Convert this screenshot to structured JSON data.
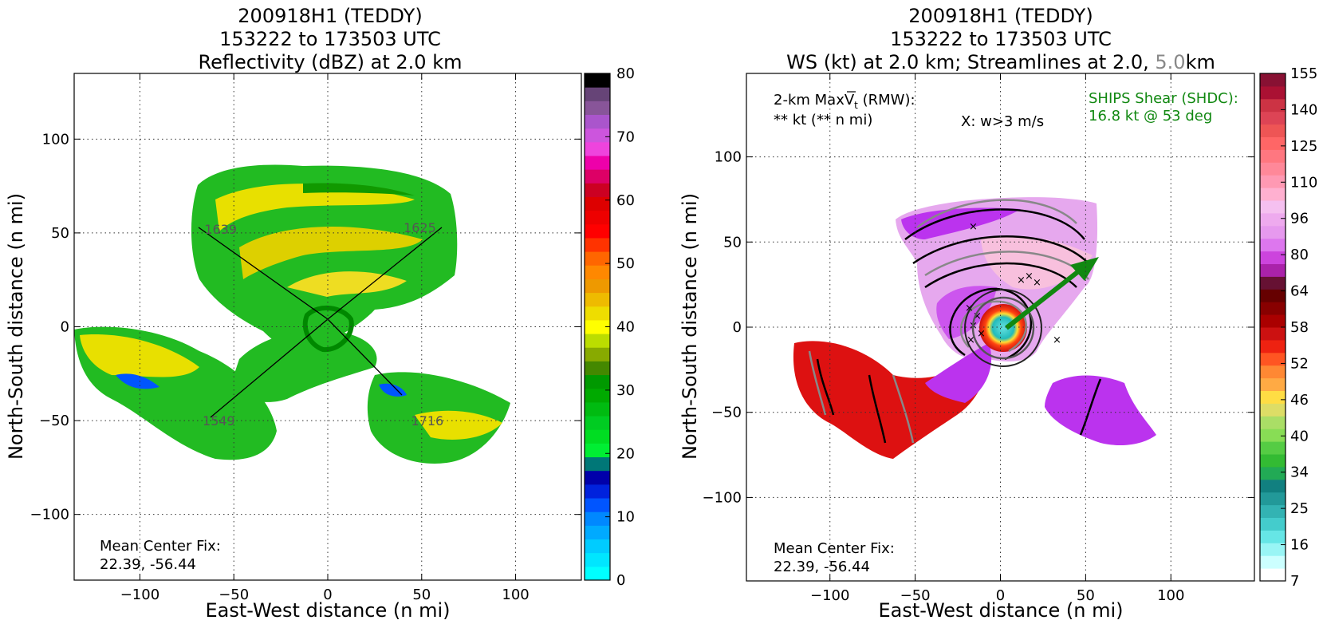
{
  "charts": [
    {
      "title_lines": [
        "200918H1 (TEDDY)",
        "153222 to 173503 UTC",
        "Reflectivity (dBZ) at 2.0 km"
      ],
      "xlabel": "East-West distance (n mi)",
      "ylabel": "North-South distance (n mi)",
      "annotation_lines": [
        "Mean Center Fix:",
        "22.39, -56.44"
      ],
      "track_labels": [
        "1625",
        "1639",
        "1549",
        "1716"
      ]
    },
    {
      "title_lines": [
        "200918H1 (TEDDY)",
        "153222 to 173503 UTC"
      ],
      "title_line3_parts": [
        "WS (kt) at 2.0 km; Streamlines at 2.0, ",
        "5.0",
        "km"
      ],
      "xlabel": "East-West distance (n mi)",
      "ylabel": "North-South distance (n mi)",
      "annotation_lines": [
        "Mean Center Fix:",
        "22.39, -56.44"
      ],
      "max_wind_lines": [
        "2-km MaxV",
        "t",
        " (RMW):",
        "** kt (** n mi)"
      ],
      "w_note": "X: w>3 m/s",
      "shear_lines": [
        "SHIPS Shear (SHDC):",
        "16.8 kt @ 53 deg"
      ]
    }
  ],
  "chart_data": [
    {
      "type": "heatmap",
      "title": "200918H1 (TEDDY) 153222 to 173503 UTC Reflectivity (dBZ) at 2.0 km",
      "xlabel": "East-West distance (n mi)",
      "ylabel": "North-South distance (n mi)",
      "xlim": [
        -135,
        135
      ],
      "ylim": [
        -135,
        135
      ],
      "xticks": [
        -100,
        -50,
        0,
        50,
        100
      ],
      "yticks": [
        -100,
        -50,
        0,
        50,
        100
      ],
      "grid": true,
      "colorbar": {
        "label_values": [
          0,
          10,
          20,
          30,
          40,
          50,
          60,
          70,
          80
        ],
        "colors": [
          "#00ffff",
          "#00e6ff",
          "#00ccff",
          "#00aaff",
          "#0088ff",
          "#0055ff",
          "#0022dd",
          "#0000aa",
          "#007777",
          "#00ee33",
          "#00dd22",
          "#00cc22",
          "#00bb11",
          "#00aa00",
          "#009900",
          "#448800",
          "#88aa00",
          "#bbdd00",
          "#ffff00",
          "#eedd00",
          "#eebb00",
          "#ee9900",
          "#ff8800",
          "#ff6600",
          "#ff3300",
          "#ff0000",
          "#ee0000",
          "#dd0000",
          "#cc0022",
          "#dd0066",
          "#ee00aa",
          "#ee44dd",
          "#cc55dd",
          "#aa55cc",
          "#885599",
          "#664477",
          "#000000"
        ]
      },
      "flight_track_labels": [
        {
          "label": "1625",
          "x": 49,
          "y": 53
        },
        {
          "label": "1639",
          "x": -57,
          "y": 52
        },
        {
          "label": "1549",
          "x": -58,
          "y": -50
        },
        {
          "label": "1716",
          "x": 53,
          "y": -50
        }
      ],
      "center_fix": "22.39, -56.44"
    },
    {
      "type": "heatmap",
      "title": "200918H1 (TEDDY) 153222 to 173503 UTC WS (kt) at 2.0 km; Streamlines at 2.0, 5.0km",
      "xlabel": "East-West distance (n mi)",
      "ylabel": "North-South distance (n mi)",
      "xlim": [
        -149,
        149
      ],
      "ylim": [
        -149,
        149
      ],
      "xticks": [
        -100,
        -50,
        0,
        50,
        100
      ],
      "yticks": [
        -100,
        -50,
        0,
        50,
        100
      ],
      "grid": true,
      "colorbar": {
        "label_values": [
          7,
          16,
          25,
          34,
          40,
          46,
          52,
          58,
          64,
          80,
          96,
          110,
          125,
          140,
          155
        ],
        "colors": [
          "#ffffff",
          "#ccffff",
          "#99f5f5",
          "#66e6e6",
          "#44cccc",
          "#33b3b3",
          "#229999",
          "#118080",
          "#22aa55",
          "#33bb33",
          "#55cc44",
          "#88dd55",
          "#aade66",
          "#dddd66",
          "#ffdd44",
          "#ffaa44",
          "#ff8833",
          "#ff5522",
          "#ee2211",
          "#cc1111",
          "#aa0000",
          "#880000",
          "#660000",
          "#661133",
          "#aa22aa",
          "#cc44dd",
          "#dd77ee",
          "#e699ee",
          "#eeaaee",
          "#f5c0f0",
          "#ffb0d0",
          "#ff99b3",
          "#ff8899",
          "#ff7780",
          "#ff6666",
          "#ee5555",
          "#dd4455",
          "#cc3344",
          "#aa1133",
          "#881133"
        ]
      },
      "shear": {
        "speed_kt": 16.8,
        "direction_deg": 53
      },
      "max_wind": "** kt (** n mi)",
      "w_threshold": "X: w>3 m/s",
      "center_fix": "22.39, -56.44"
    }
  ]
}
